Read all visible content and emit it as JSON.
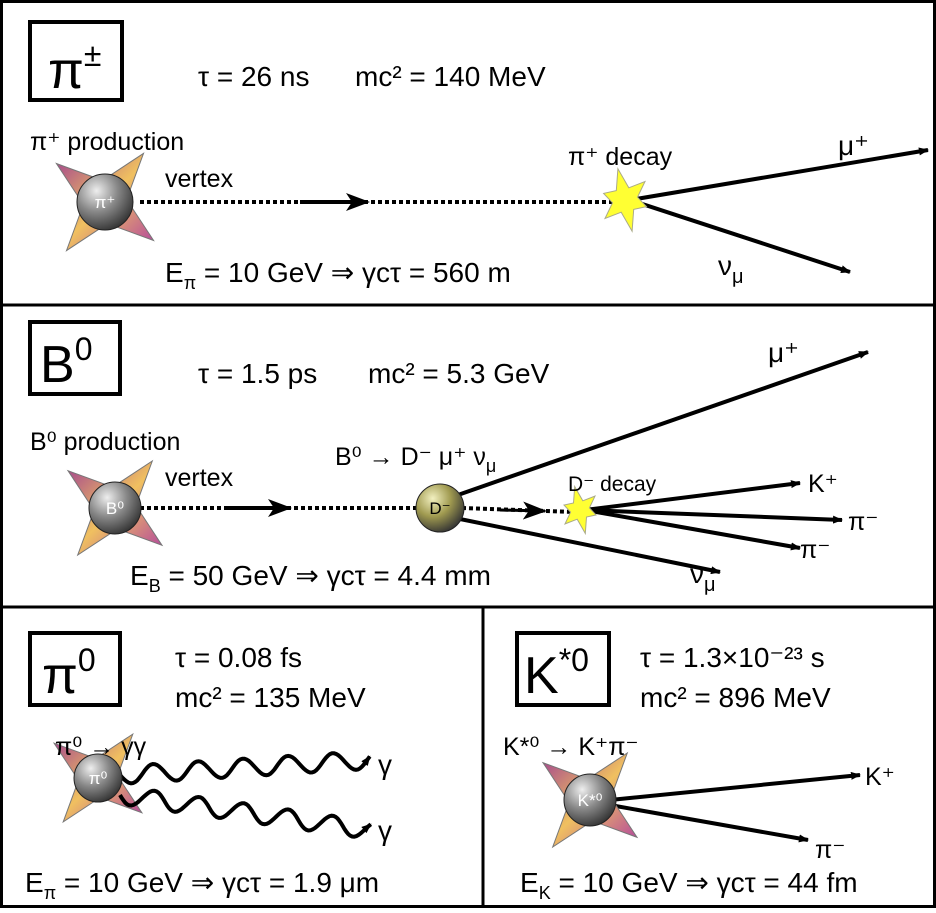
{
  "panels": [
    {
      "label": {
        "base": "π",
        "sup": "±"
      },
      "lifetime": "τ = 26 ns",
      "mass": "mc² = 140 MeV",
      "production": [
        "π⁺ production",
        "vertex"
      ],
      "particle": "π⁺",
      "decay": "π⁺ decay",
      "products": [
        {
          "base": "μ⁺"
        },
        {
          "base": "ν",
          "sub": "μ"
        }
      ],
      "energy": {
        "base": "E",
        "sub": "π",
        "rest": " = 10 GeV ⇒ γcτ = 560 m"
      }
    },
    {
      "label": {
        "base": "B",
        "sup": "0"
      },
      "lifetime": "τ = 1.5 ps",
      "mass": "mc² = 5.3 GeV",
      "production": [
        "B⁰ production",
        "vertex"
      ],
      "particle": "B⁰",
      "reaction": {
        "base": "B⁰ → D⁻ μ⁺ ν",
        "sub": "μ"
      },
      "intermediate": "D⁻",
      "decay": "D⁻ decay",
      "products": [
        {
          "base": "μ⁺"
        },
        {
          "base": "ν",
          "sub": "μ"
        },
        {
          "base": "K⁺"
        },
        {
          "base": "π⁻"
        },
        {
          "base": "π⁻"
        }
      ],
      "energy": {
        "base": "E",
        "sub": "B",
        "rest": " = 50 GeV ⇒ γcτ = 4.4 mm"
      }
    },
    {
      "label": {
        "base": "π",
        "sup": "0"
      },
      "lifetime": "τ = 0.08 fs",
      "mass": "mc² = 135 MeV",
      "reaction": {
        "base": "π⁰ → γγ"
      },
      "particle": "π⁰",
      "products": [
        {
          "base": "γ"
        },
        {
          "base": "γ"
        }
      ],
      "energy": {
        "base": "E",
        "sub": "π",
        "rest": " = 10 GeV ⇒ γcτ = 1.9 μm"
      }
    },
    {
      "label": {
        "base": "K",
        "sup": "*0"
      },
      "lifetime": "τ = 1.3×10⁻²³ s",
      "mass": "mc² = 896 MeV",
      "reaction": {
        "base": "K*⁰ → K⁺π⁻"
      },
      "particle": "K*⁰",
      "products": [
        {
          "base": "K⁺"
        },
        {
          "base": "π⁻"
        }
      ],
      "energy": {
        "base": "E",
        "sub": "K",
        "rest": " = 10 GeV ⇒ γcτ = 44 fm"
      }
    }
  ]
}
